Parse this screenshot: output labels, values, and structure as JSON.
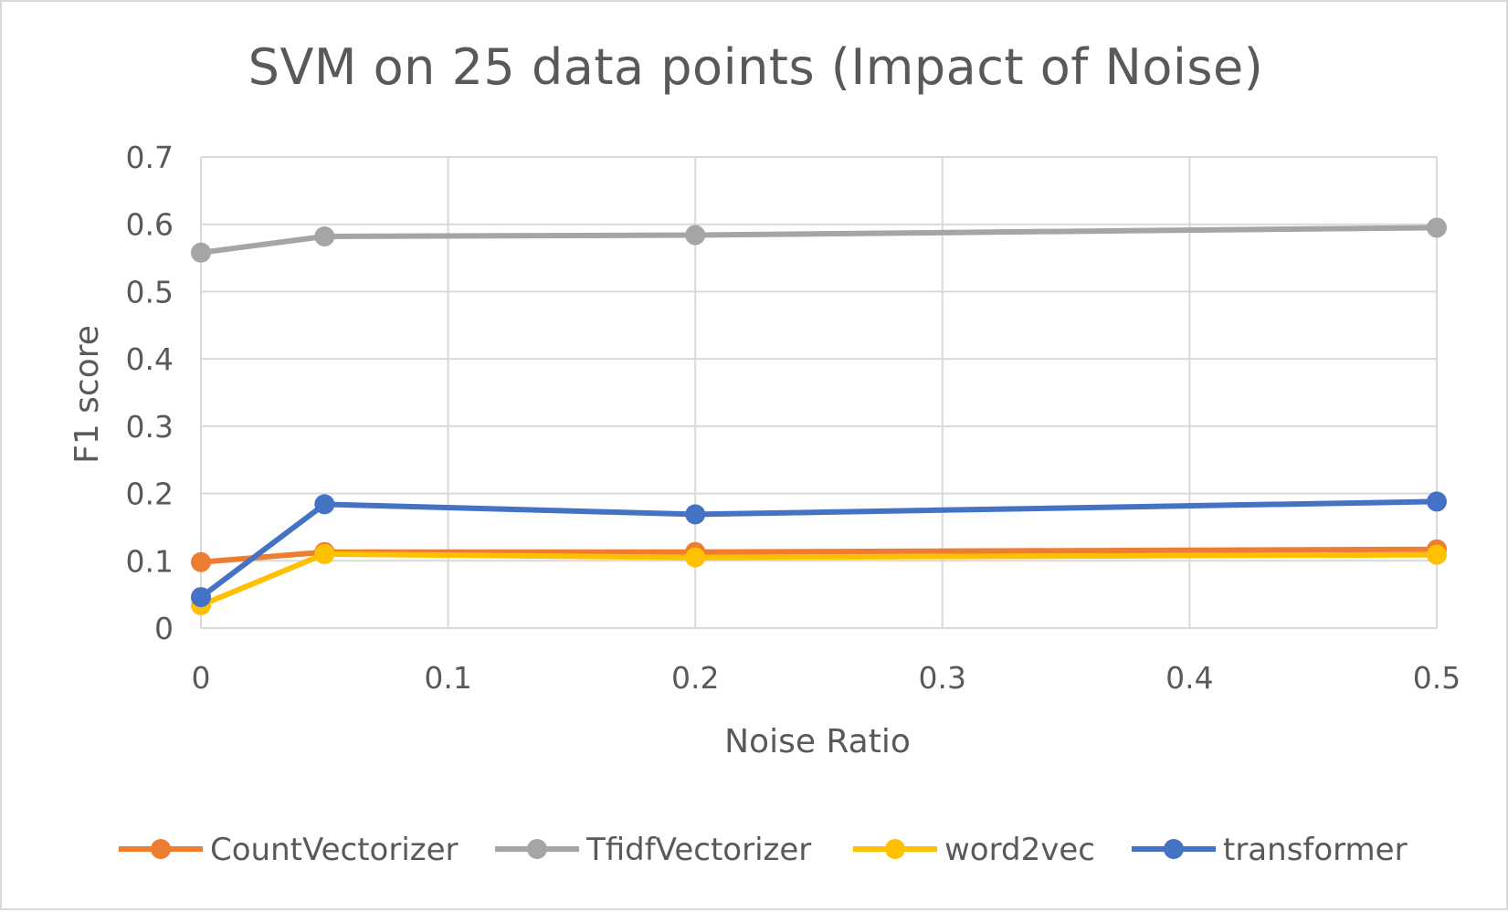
{
  "chart_data": {
    "type": "line",
    "title": "SVM on 25 data points (Impact of Noise)",
    "xlabel": "Noise Ratio",
    "ylabel": "F1 score",
    "x": [
      0,
      0.05,
      0.2,
      0.5
    ],
    "xlim": [
      0,
      0.5
    ],
    "ylim": [
      0,
      0.7
    ],
    "xticks": [
      0,
      0.1,
      0.2,
      0.3,
      0.4,
      0.5
    ],
    "yticks": [
      0,
      0.1,
      0.2,
      0.3,
      0.4,
      0.5,
      0.6,
      0.7
    ],
    "xtick_labels": [
      "0",
      "0.1",
      "0.2",
      "0.3",
      "0.4",
      "0.5"
    ],
    "ytick_labels": [
      "0",
      "0.1",
      "0.2",
      "0.3",
      "0.4",
      "0.5",
      "0.6",
      "0.7"
    ],
    "grid": true,
    "legend_position": "bottom",
    "series": [
      {
        "name": "CountVectorizer",
        "color": "#ed7d31",
        "values": [
          0.098,
          0.113,
          0.113,
          0.117
        ]
      },
      {
        "name": "TfidfVectorizer",
        "color": "#a5a5a5",
        "values": [
          0.558,
          0.582,
          0.584,
          0.595
        ]
      },
      {
        "name": "word2vec",
        "color": "#ffc000",
        "values": [
          0.034,
          0.11,
          0.105,
          0.109
        ]
      },
      {
        "name": "transformer",
        "color": "#4472c4",
        "values": [
          0.046,
          0.184,
          0.169,
          0.188
        ]
      }
    ]
  }
}
